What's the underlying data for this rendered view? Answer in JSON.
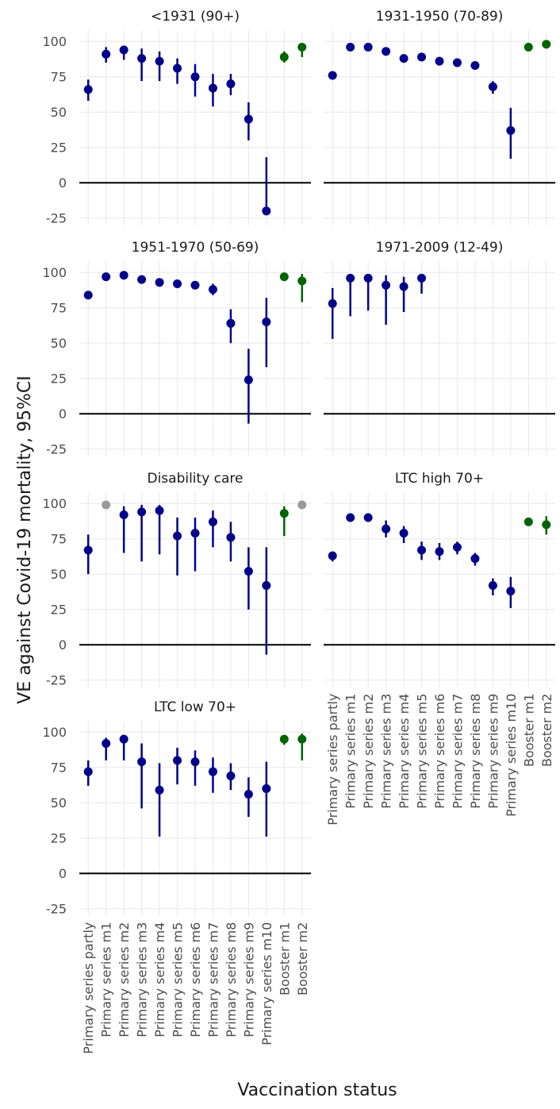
{
  "axis_labels": {
    "x": "Vaccination status",
    "y": "VE against Covid-19 mortality, 95%CI"
  },
  "categories": [
    "Primary series partly",
    "Primary series m1",
    "Primary series m2",
    "Primary series m3",
    "Primary series m4",
    "Primary series m5",
    "Primary series m6",
    "Primary series m7",
    "Primary series m8",
    "Primary series m9",
    "Primary series m10",
    "Booster m1",
    "Booster m2"
  ],
  "ylim": [
    -30,
    108
  ],
  "yticks": [
    -25,
    0,
    25,
    50,
    75,
    100
  ],
  "reference_line": 0,
  "grid": true,
  "chart_data": [
    {
      "type": "pointrange",
      "title": "<1931 (90+)",
      "values": [
        66,
        91,
        94,
        88,
        86,
        81,
        75,
        67,
        70,
        45,
        -20,
        89,
        96
      ],
      "lower": [
        58,
        85,
        87,
        72,
        72,
        70,
        61,
        54,
        62,
        30,
        -22,
        85,
        89
      ],
      "upper": [
        73,
        96,
        97,
        95,
        93,
        88,
        84,
        77,
        77,
        57,
        18,
        93,
        99
      ],
      "colors": [
        "#00008b",
        "#00008b",
        "#00008b",
        "#00008b",
        "#00008b",
        "#00008b",
        "#00008b",
        "#00008b",
        "#00008b",
        "#00008b",
        "#00008b",
        "#006400",
        "#006400"
      ]
    },
    {
      "type": "pointrange",
      "title": "1931-1950 (70-89)",
      "values": [
        76,
        96,
        96,
        93,
        88,
        89,
        86,
        85,
        83,
        68,
        37,
        96,
        98
      ],
      "lower": [
        null,
        null,
        null,
        null,
        null,
        null,
        null,
        null,
        null,
        63,
        17,
        null,
        null
      ],
      "upper": [
        null,
        null,
        null,
        null,
        null,
        null,
        null,
        null,
        null,
        72,
        53,
        null,
        null
      ],
      "colors": [
        "#00008b",
        "#00008b",
        "#00008b",
        "#00008b",
        "#00008b",
        "#00008b",
        "#00008b",
        "#00008b",
        "#00008b",
        "#00008b",
        "#00008b",
        "#006400",
        "#006400"
      ]
    },
    {
      "type": "pointrange",
      "title": "1951-1970 (50-69)",
      "values": [
        84,
        97,
        98,
        95,
        93,
        92,
        91,
        88,
        64,
        24,
        65,
        97,
        94
      ],
      "lower": [
        82,
        94,
        null,
        null,
        null,
        null,
        null,
        84,
        50,
        -7,
        33,
        null,
        79
      ],
      "upper": [
        86,
        99,
        null,
        null,
        null,
        null,
        null,
        92,
        74,
        46,
        82,
        null,
        99
      ],
      "colors": [
        "#00008b",
        "#00008b",
        "#00008b",
        "#00008b",
        "#00008b",
        "#00008b",
        "#00008b",
        "#00008b",
        "#00008b",
        "#00008b",
        "#00008b",
        "#006400",
        "#006400"
      ]
    },
    {
      "type": "pointrange",
      "title": "1971-2009 (12-49)",
      "values": [
        78,
        96,
        96,
        91,
        90,
        96,
        null,
        null,
        null,
        null,
        null,
        null,
        null
      ],
      "lower": [
        53,
        69,
        73,
        63,
        72,
        85,
        null,
        null,
        null,
        null,
        null,
        null,
        null
      ],
      "upper": [
        89,
        99,
        99,
        98,
        97,
        99,
        null,
        null,
        null,
        null,
        null,
        null,
        null
      ],
      "colors": [
        "#00008b",
        "#00008b",
        "#00008b",
        "#00008b",
        "#00008b",
        "#00008b",
        null,
        null,
        null,
        null,
        null,
        null,
        null
      ]
    },
    {
      "type": "pointrange",
      "title": "Disability care",
      "values": [
        67,
        99,
        92,
        94,
        95,
        77,
        79,
        87,
        76,
        52,
        42,
        93,
        99
      ],
      "lower": [
        50,
        null,
        65,
        59,
        64,
        49,
        52,
        69,
        59,
        25,
        -7,
        77,
        null
      ],
      "upper": [
        78,
        null,
        98,
        99,
        99,
        90,
        90,
        95,
        87,
        69,
        69,
        98,
        null
      ],
      "colors": [
        "#00008b",
        "#999999",
        "#00008b",
        "#00008b",
        "#00008b",
        "#00008b",
        "#00008b",
        "#00008b",
        "#00008b",
        "#00008b",
        "#00008b",
        "#006400",
        "#999999"
      ]
    },
    {
      "type": "pointrange",
      "title": "LTC high 70+",
      "values": [
        63,
        90,
        90,
        82,
        79,
        67,
        66,
        69,
        61,
        42,
        38,
        87,
        85
      ],
      "lower": [
        59,
        88,
        87,
        76,
        72,
        60,
        60,
        64,
        56,
        35,
        26,
        85,
        78
      ],
      "upper": [
        66,
        92,
        93,
        88,
        84,
        73,
        72,
        73,
        65,
        47,
        48,
        88,
        91
      ],
      "colors": [
        "#00008b",
        "#00008b",
        "#00008b",
        "#00008b",
        "#00008b",
        "#00008b",
        "#00008b",
        "#00008b",
        "#00008b",
        "#00008b",
        "#00008b",
        "#006400",
        "#006400"
      ]
    },
    {
      "type": "pointrange",
      "title": "LTC low 70+",
      "values": [
        72,
        92,
        95,
        79,
        59,
        80,
        79,
        72,
        69,
        56,
        60,
        95,
        95
      ],
      "lower": [
        62,
        80,
        80,
        46,
        26,
        63,
        62,
        57,
        59,
        40,
        26,
        91,
        80
      ],
      "upper": [
        80,
        96,
        98,
        92,
        78,
        89,
        87,
        82,
        78,
        68,
        79,
        97,
        99
      ],
      "colors": [
        "#00008b",
        "#00008b",
        "#00008b",
        "#00008b",
        "#00008b",
        "#00008b",
        "#00008b",
        "#00008b",
        "#00008b",
        "#00008b",
        "#00008b",
        "#006400",
        "#006400"
      ]
    }
  ]
}
